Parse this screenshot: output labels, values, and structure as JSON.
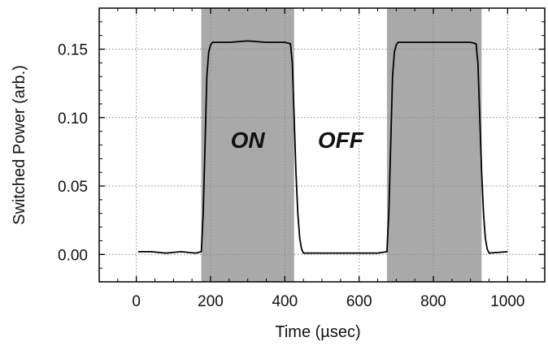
{
  "chart_data": {
    "type": "line",
    "title": "",
    "xlabel": "Time (µsec)",
    "ylabel": "Switched Power (arb.)",
    "xlim": [
      -100,
      1100
    ],
    "ylim": [
      -0.02,
      0.18
    ],
    "grid": true,
    "x_ticks": [
      {
        "value": 0,
        "label": "0"
      },
      {
        "value": 200,
        "label": "200"
      },
      {
        "value": 400,
        "label": "400"
      },
      {
        "value": 600,
        "label": "600"
      },
      {
        "value": 800,
        "label": "800"
      },
      {
        "value": 1000,
        "label": "1000"
      }
    ],
    "y_ticks": [
      {
        "value": 0.0,
        "label": "0.00"
      },
      {
        "value": 0.05,
        "label": "0.05"
      },
      {
        "value": 0.1,
        "label": "0.10"
      },
      {
        "value": 0.15,
        "label": "0.15"
      }
    ],
    "shaded_regions": [
      {
        "x0": 175,
        "x1": 425,
        "color": "#a9a9a9"
      },
      {
        "x0": 675,
        "x1": 930,
        "color": "#a9a9a9"
      }
    ],
    "annotations": [
      {
        "text": "ON",
        "x": 300,
        "y": 0.078
      },
      {
        "text": "OFF",
        "x": 550,
        "y": 0.078
      }
    ],
    "series": [
      {
        "color": "#000000",
        "x": [
          5,
          40,
          80,
          120,
          160,
          175,
          180,
          185,
          190,
          195,
          200,
          205,
          250,
          300,
          350,
          400,
          415,
          420,
          425,
          430,
          435,
          440,
          445,
          450,
          500,
          550,
          600,
          650,
          675,
          680,
          685,
          690,
          695,
          700,
          705,
          750,
          800,
          850,
          900,
          915,
          920,
          925,
          930,
          935,
          940,
          945,
          950,
          1000
        ],
        "y": [
          0.002,
          0.002,
          0.001,
          0.002,
          0.001,
          0.002,
          0.03,
          0.08,
          0.13,
          0.148,
          0.153,
          0.155,
          0.155,
          0.156,
          0.155,
          0.155,
          0.154,
          0.14,
          0.1,
          0.06,
          0.03,
          0.012,
          0.004,
          0.001,
          0.001,
          0.001,
          0.001,
          0.001,
          0.002,
          0.03,
          0.08,
          0.13,
          0.148,
          0.153,
          0.155,
          0.155,
          0.155,
          0.155,
          0.155,
          0.154,
          0.14,
          0.1,
          0.06,
          0.03,
          0.012,
          0.004,
          0.001,
          0.002
        ]
      }
    ]
  }
}
